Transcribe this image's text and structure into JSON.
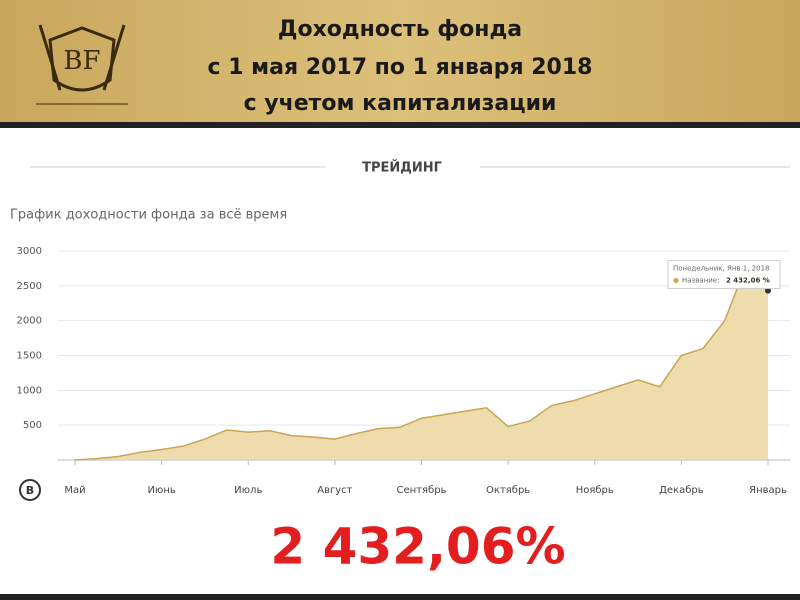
{
  "header": {
    "logo_text": "BF",
    "title_lines": [
      "Доходность фонда",
      "с 1 мая 2017 по 1 января 2018",
      "с учетом капитализации"
    ]
  },
  "section_title": "ТРЕЙДИНГ",
  "chart_data": {
    "type": "area",
    "title": "График доходности фонда за всё время",
    "categories": [
      "Май",
      null,
      null,
      null,
      "Июнь",
      null,
      null,
      null,
      "Июль",
      null,
      null,
      null,
      "Август",
      null,
      null,
      null,
      "Сентябрь",
      null,
      null,
      null,
      "Октябрь",
      null,
      null,
      null,
      "Ноябрь",
      null,
      null,
      null,
      "Декабрь",
      null,
      null,
      null,
      "Январь"
    ],
    "series": [
      {
        "name": "Название:",
        "color": "#c9a552",
        "values": [
          0,
          20,
          50,
          110,
          150,
          200,
          300,
          430,
          400,
          420,
          350,
          330,
          300,
          380,
          450,
          470,
          600,
          650,
          700,
          750,
          480,
          560,
          780,
          850,
          950,
          1050,
          1150,
          1050,
          1500,
          1600,
          2000,
          2800,
          2432.06
        ]
      }
    ],
    "ylim": [
      0,
      3000
    ],
    "yticks": [
      500,
      1000,
      1500,
      2000,
      2500,
      3000
    ],
    "grid": true,
    "tooltip": {
      "date": "Понедельник, Янв 1, 2018",
      "value_label": "2 432,06 %"
    },
    "x_icon": "B"
  },
  "result": {
    "value": 2432.06,
    "label": "2 432,06%"
  }
}
